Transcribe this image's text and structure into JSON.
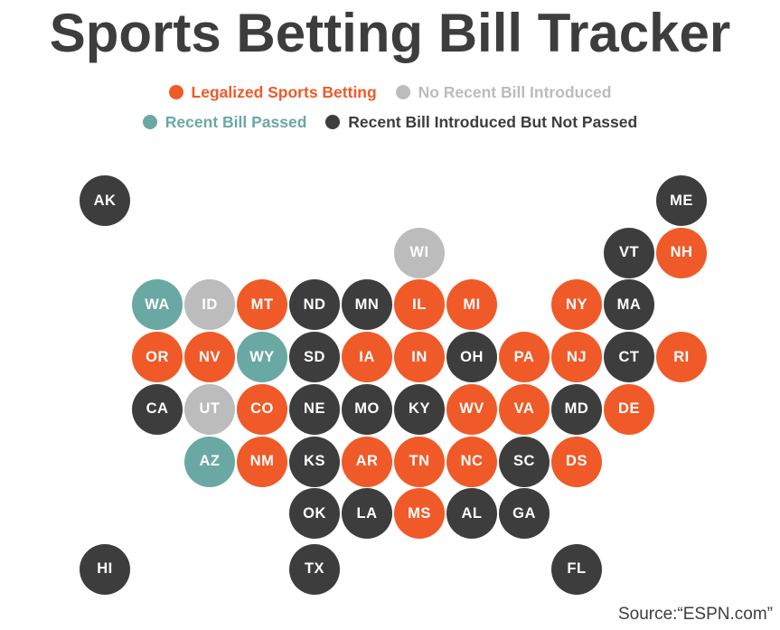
{
  "title": "Sports Betting Bill Tracker",
  "colors": {
    "legalized": "#f05a28",
    "none": "#bcbcbc",
    "passed": "#6aa8a4",
    "introduced": "#3d3d3d"
  },
  "legend": [
    {
      "key": "legalized",
      "label": "Legalized Sports Betting"
    },
    {
      "key": "none",
      "label": "No Recent Bill Introduced"
    },
    {
      "key": "passed",
      "label": "Recent Bill Passed"
    },
    {
      "key": "introduced",
      "label": "Recent Bill Introduced But Not Passed"
    }
  ],
  "states": [
    {
      "abbr": "AK",
      "status": "introduced",
      "col": 0,
      "row": 0
    },
    {
      "abbr": "ME",
      "status": "introduced",
      "col": 11,
      "row": 0
    },
    {
      "abbr": "WI",
      "status": "none",
      "col": 6,
      "row": 1
    },
    {
      "abbr": "VT",
      "status": "introduced",
      "col": 10,
      "row": 1
    },
    {
      "abbr": "NH",
      "status": "legalized",
      "col": 11,
      "row": 1
    },
    {
      "abbr": "WA",
      "status": "passed",
      "col": 1,
      "row": 2
    },
    {
      "abbr": "ID",
      "status": "none",
      "col": 2,
      "row": 2
    },
    {
      "abbr": "MT",
      "status": "legalized",
      "col": 3,
      "row": 2
    },
    {
      "abbr": "ND",
      "status": "introduced",
      "col": 4,
      "row": 2
    },
    {
      "abbr": "MN",
      "status": "introduced",
      "col": 5,
      "row": 2
    },
    {
      "abbr": "IL",
      "status": "legalized",
      "col": 6,
      "row": 2
    },
    {
      "abbr": "MI",
      "status": "legalized",
      "col": 7,
      "row": 2
    },
    {
      "abbr": "NY",
      "status": "legalized",
      "col": 9,
      "row": 2
    },
    {
      "abbr": "MA",
      "status": "introduced",
      "col": 10,
      "row": 2
    },
    {
      "abbr": "OR",
      "status": "legalized",
      "col": 1,
      "row": 3
    },
    {
      "abbr": "NV",
      "status": "legalized",
      "col": 2,
      "row": 3
    },
    {
      "abbr": "WY",
      "status": "passed",
      "col": 3,
      "row": 3
    },
    {
      "abbr": "SD",
      "status": "introduced",
      "col": 4,
      "row": 3
    },
    {
      "abbr": "IA",
      "status": "legalized",
      "col": 5,
      "row": 3
    },
    {
      "abbr": "IN",
      "status": "legalized",
      "col": 6,
      "row": 3
    },
    {
      "abbr": "OH",
      "status": "introduced",
      "col": 7,
      "row": 3
    },
    {
      "abbr": "PA",
      "status": "legalized",
      "col": 8,
      "row": 3
    },
    {
      "abbr": "NJ",
      "status": "legalized",
      "col": 9,
      "row": 3
    },
    {
      "abbr": "CT",
      "status": "introduced",
      "col": 10,
      "row": 3
    },
    {
      "abbr": "RI",
      "status": "legalized",
      "col": 11,
      "row": 3
    },
    {
      "abbr": "CA",
      "status": "introduced",
      "col": 1,
      "row": 4
    },
    {
      "abbr": "UT",
      "status": "none",
      "col": 2,
      "row": 4
    },
    {
      "abbr": "CO",
      "status": "legalized",
      "col": 3,
      "row": 4
    },
    {
      "abbr": "NE",
      "status": "introduced",
      "col": 4,
      "row": 4
    },
    {
      "abbr": "MO",
      "status": "introduced",
      "col": 5,
      "row": 4
    },
    {
      "abbr": "KY",
      "status": "introduced",
      "col": 6,
      "row": 4
    },
    {
      "abbr": "WV",
      "status": "legalized",
      "col": 7,
      "row": 4
    },
    {
      "abbr": "VA",
      "status": "legalized",
      "col": 8,
      "row": 4
    },
    {
      "abbr": "MD",
      "status": "introduced",
      "col": 9,
      "row": 4
    },
    {
      "abbr": "DE",
      "status": "legalized",
      "col": 10,
      "row": 4
    },
    {
      "abbr": "AZ",
      "status": "passed",
      "col": 2,
      "row": 5
    },
    {
      "abbr": "NM",
      "status": "legalized",
      "col": 3,
      "row": 5
    },
    {
      "abbr": "KS",
      "status": "introduced",
      "col": 4,
      "row": 5
    },
    {
      "abbr": "AR",
      "status": "legalized",
      "col": 5,
      "row": 5
    },
    {
      "abbr": "TN",
      "status": "legalized",
      "col": 6,
      "row": 5
    },
    {
      "abbr": "NC",
      "status": "legalized",
      "col": 7,
      "row": 5
    },
    {
      "abbr": "SC",
      "status": "introduced",
      "col": 8,
      "row": 5
    },
    {
      "abbr": "DS",
      "status": "legalized",
      "col": 9,
      "row": 5
    },
    {
      "abbr": "OK",
      "status": "introduced",
      "col": 4,
      "row": 6
    },
    {
      "abbr": "LA",
      "status": "introduced",
      "col": 5,
      "row": 6
    },
    {
      "abbr": "MS",
      "status": "legalized",
      "col": 6,
      "row": 6
    },
    {
      "abbr": "AL",
      "status": "introduced",
      "col": 7,
      "row": 6
    },
    {
      "abbr": "GA",
      "status": "introduced",
      "col": 8,
      "row": 6
    },
    {
      "abbr": "HI",
      "status": "introduced",
      "col": 0,
      "row": 7
    },
    {
      "abbr": "TX",
      "status": "introduced",
      "col": 4,
      "row": 7
    },
    {
      "abbr": "FL",
      "status": "introduced",
      "col": 9,
      "row": 7
    }
  ],
  "source": "Source:“ESPN.com”"
}
